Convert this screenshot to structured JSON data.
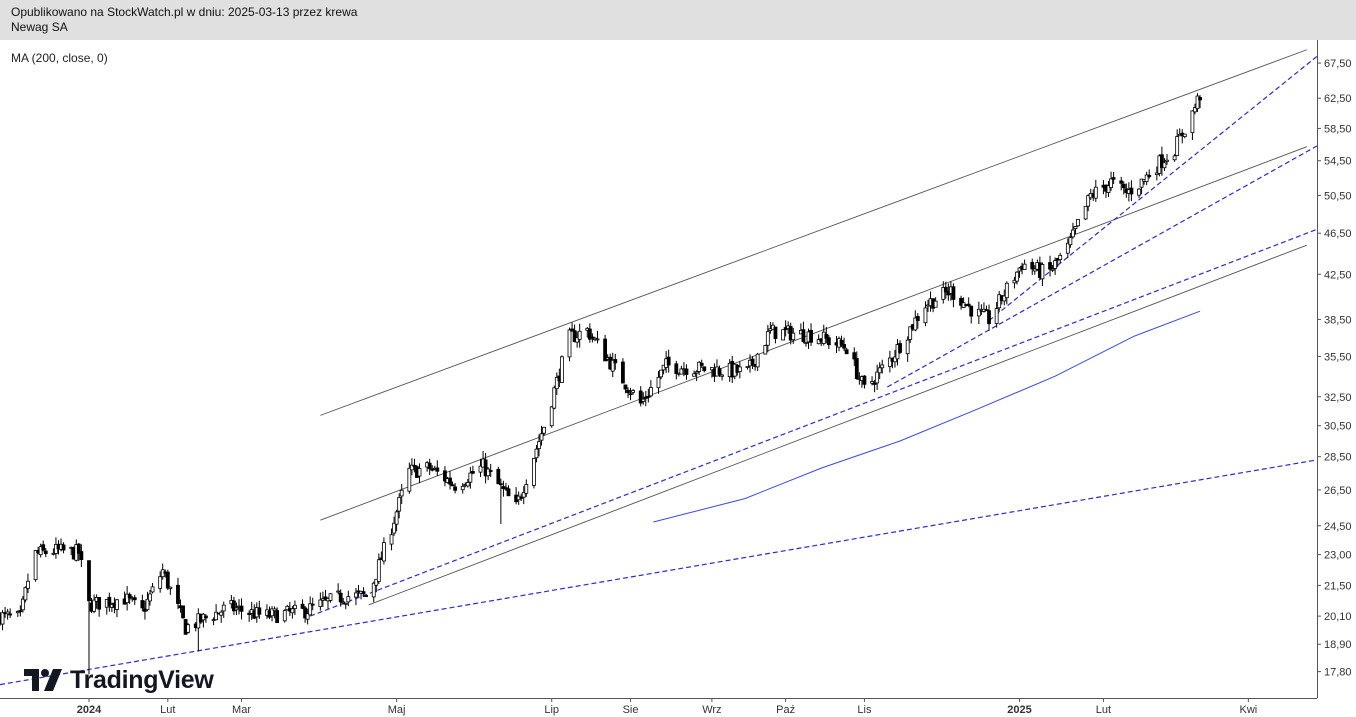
{
  "header": {
    "published": "Opublikowano na StockWatch.pl w dniu: 2025-03-13 przez krewa",
    "symbol": "Newag SA"
  },
  "indicator_label": "MA (200, close, 0)",
  "brand": {
    "name": "TradingView",
    "icon": "tradingview-logo-icon"
  },
  "colors": {
    "up": "#ffffff",
    "down": "#000000",
    "wick": "#000000",
    "ma": "#3949f0",
    "trend_dashed": "#2b2bd6",
    "channel": "#555555"
  },
  "chart_data": {
    "type": "candlestick",
    "y_scale": "log",
    "ylim": [
      16.8,
      71.0
    ],
    "y_ticks": [
      "67,50",
      "62,50",
      "58,50",
      "54,50",
      "50,50",
      "46,50",
      "42,50",
      "38,50",
      "35,50",
      "32,50",
      "30,50",
      "28,50",
      "26,50",
      "24,50",
      "23,00",
      "21,50",
      "20,10",
      "18,90",
      "17,80"
    ],
    "x_ticks": [
      "2024",
      "Lut",
      "Mar",
      "Maj",
      "Lip",
      "Sie",
      "Wrz",
      "Paź",
      "Lis",
      "2025",
      "Lut",
      "Kwi"
    ],
    "x_range": [
      "2023-11-27",
      "2025-04-28"
    ],
    "x_tick_dates": [
      "2024-01-01",
      "2024-02-01",
      "2024-03-01",
      "2024-05-01",
      "2024-07-01",
      "2024-08-01",
      "2024-09-02",
      "2024-10-01",
      "2024-11-01",
      "2025-01-01",
      "2025-02-03",
      "2025-04-01"
    ],
    "anchors": [
      [
        "2023-11-27",
        20.1
      ],
      [
        "2023-12-05",
        20.0
      ],
      [
        "2023-12-10",
        23.0
      ],
      [
        "2023-12-18",
        23.2
      ],
      [
        "2023-12-28",
        23.1
      ],
      [
        "2024-01-01",
        20.6
      ],
      [
        "2024-01-15",
        20.9
      ],
      [
        "2024-01-22",
        20.3
      ],
      [
        "2024-01-30",
        22.2
      ],
      [
        "2024-02-08",
        19.6
      ],
      [
        "2024-02-25",
        20.5
      ],
      [
        "2024-03-10",
        20.1
      ],
      [
        "2024-03-25",
        20.3
      ],
      [
        "2024-04-10",
        21.0
      ],
      [
        "2024-04-20",
        21.0
      ],
      [
        "2024-04-28",
        24.0
      ],
      [
        "2024-05-06",
        27.6
      ],
      [
        "2024-05-14",
        27.8
      ],
      [
        "2024-05-24",
        26.8
      ],
      [
        "2024-06-04",
        27.9
      ],
      [
        "2024-06-11",
        26.6
      ],
      [
        "2024-06-17",
        25.5
      ],
      [
        "2024-06-28",
        30.5
      ],
      [
        "2024-07-08",
        37.0
      ],
      [
        "2024-07-15",
        37.6
      ],
      [
        "2024-07-25",
        34.8
      ],
      [
        "2024-08-05",
        32.0
      ],
      [
        "2024-08-15",
        34.8
      ],
      [
        "2024-09-02",
        34.5
      ],
      [
        "2024-09-16",
        34.3
      ],
      [
        "2024-09-25",
        37.5
      ],
      [
        "2024-10-12",
        37.2
      ],
      [
        "2024-10-25",
        36.2
      ],
      [
        "2024-11-01",
        33.0
      ],
      [
        "2024-11-12",
        35.5
      ],
      [
        "2024-11-25",
        39.8
      ],
      [
        "2024-12-05",
        41.0
      ],
      [
        "2024-12-15",
        39.0
      ],
      [
        "2024-12-20",
        38.5
      ],
      [
        "2025-01-02",
        43.5
      ],
      [
        "2025-01-12",
        42.5
      ],
      [
        "2025-01-20",
        45.0
      ],
      [
        "2025-01-29",
        50.5
      ],
      [
        "2025-02-06",
        52.0
      ],
      [
        "2025-02-12",
        50.8
      ],
      [
        "2025-02-18",
        52.0
      ],
      [
        "2025-02-24",
        54.0
      ],
      [
        "2025-03-03",
        56.0
      ],
      [
        "2025-03-10",
        60.5
      ],
      [
        "2025-03-13",
        63.0
      ]
    ],
    "spikes": [
      {
        "date": "2024-01-01",
        "low": 17.7
      },
      {
        "date": "2024-02-13",
        "low": 18.6
      },
      {
        "date": "2024-06-11",
        "low": 24.6
      },
      {
        "date": "2025-02-01",
        "high": 59.8
      }
    ],
    "ma200": {
      "label": "MA (200, close, 0)",
      "points": [
        [
          "2024-08-10",
          24.7
        ],
        [
          "2024-09-15",
          26.0
        ],
        [
          "2024-10-15",
          27.8
        ],
        [
          "2024-11-15",
          29.5
        ],
        [
          "2024-12-15",
          31.6
        ],
        [
          "2025-01-15",
          34.0
        ],
        [
          "2025-02-15",
          37.1
        ],
        [
          "2025-03-13",
          39.2
        ]
      ]
    },
    "trendlines": [
      {
        "style": "solid",
        "from": [
          "2024-04-01",
          31.2
        ],
        "to": [
          "2025-04-24",
          69.5
        ]
      },
      {
        "style": "solid",
        "from": [
          "2024-04-01",
          24.8
        ],
        "to": [
          "2025-04-24",
          56.2
        ]
      },
      {
        "style": "solid",
        "from": [
          "2024-04-20",
          20.6
        ],
        "to": [
          "2025-04-24",
          45.3
        ]
      },
      {
        "style": "dashed",
        "from": [
          "2023-11-27",
          17.3
        ],
        "to": [
          "2025-04-28",
          28.3
        ]
      },
      {
        "style": "dashed",
        "from": [
          "2024-03-28",
          20.1
        ],
        "to": [
          "2025-04-28",
          46.9
        ]
      },
      {
        "style": "dashed",
        "from": [
          "2024-11-10",
          33.2
        ],
        "to": [
          "2025-04-28",
          56.3
        ]
      },
      {
        "style": "dashed",
        "from": [
          "2024-12-20",
          38.4
        ],
        "to": [
          "2025-04-28",
          68.5
        ]
      }
    ]
  }
}
